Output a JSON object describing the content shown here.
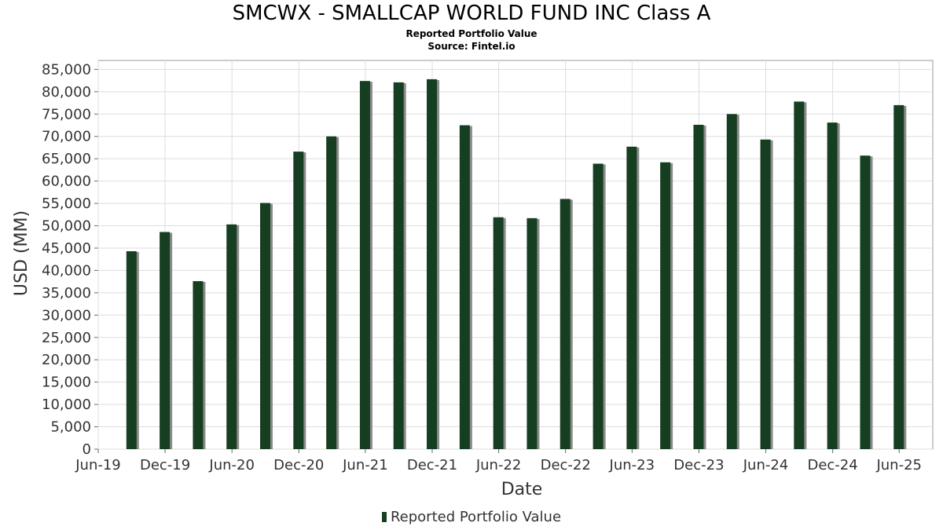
{
  "title": "SMCWX - SMALLCAP WORLD FUND INC Class A",
  "subtitle": "Reported Portfolio Value",
  "source": "Source: Fintel.io",
  "colors": {
    "bar": "#163f21",
    "bar_shadow": "#8a8a8a",
    "grid": "#dddddd",
    "plot_border": "#999999"
  },
  "chart_data": {
    "type": "bar",
    "title": "SMCWX - SMALLCAP WORLD FUND INC Class A",
    "xlabel": "Date",
    "ylabel": "USD (MM)",
    "ylim": [
      0,
      87000
    ],
    "grid": true,
    "legend_placement": "bottom",
    "x_ticks": [
      "Jun-19",
      "Dec-19",
      "Jun-20",
      "Dec-20",
      "Jun-21",
      "Dec-21",
      "Jun-22",
      "Dec-22",
      "Jun-23",
      "Dec-23",
      "Jun-24",
      "Dec-24",
      "Jun-25"
    ],
    "y_ticks": [
      "0",
      "5,000",
      "10,000",
      "15,000",
      "20,000",
      "25,000",
      "30,000",
      "35,000",
      "40,000",
      "45,000",
      "50,000",
      "55,000",
      "60,000",
      "65,000",
      "70,000",
      "75,000",
      "80,000",
      "85,000"
    ],
    "series": [
      {
        "name": "Reported Portfolio Value",
        "points": [
          {
            "date": "2019-08-31",
            "value": 44300
          },
          {
            "date": "2019-11-30",
            "value": 48600
          },
          {
            "date": "2020-02-29",
            "value": 37600
          },
          {
            "date": "2020-05-31",
            "value": 50300
          },
          {
            "date": "2020-08-31",
            "value": 55100
          },
          {
            "date": "2020-11-30",
            "value": 66600
          },
          {
            "date": "2021-02-28",
            "value": 70000
          },
          {
            "date": "2021-05-31",
            "value": 82400
          },
          {
            "date": "2021-08-31",
            "value": 82100
          },
          {
            "date": "2021-11-30",
            "value": 82800
          },
          {
            "date": "2022-02-28",
            "value": 72500
          },
          {
            "date": "2022-05-31",
            "value": 51900
          },
          {
            "date": "2022-08-31",
            "value": 51700
          },
          {
            "date": "2022-11-30",
            "value": 56000
          },
          {
            "date": "2023-02-28",
            "value": 63900
          },
          {
            "date": "2023-05-31",
            "value": 67700
          },
          {
            "date": "2023-08-31",
            "value": 64200
          },
          {
            "date": "2023-11-30",
            "value": 72600
          },
          {
            "date": "2024-02-29",
            "value": 75000
          },
          {
            "date": "2024-05-31",
            "value": 69300
          },
          {
            "date": "2024-08-31",
            "value": 77800
          },
          {
            "date": "2024-11-30",
            "value": 73100
          },
          {
            "date": "2025-02-28",
            "value": 65700
          },
          {
            "date": "2025-05-31",
            "value": 77000
          }
        ]
      }
    ]
  }
}
